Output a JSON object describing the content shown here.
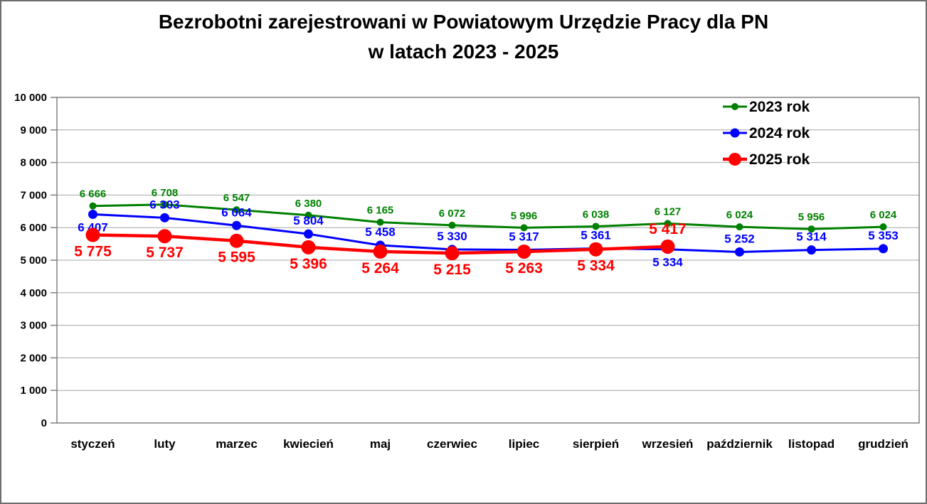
{
  "page": {
    "background": "#ffffff",
    "border_color": "#6e6e6e"
  },
  "title": {
    "line1": "Bezrobotni zarejestrowani w Powiatowym Urzędzie Pracy dla PN",
    "line2": "w latach 2023 - 2025"
  },
  "chart_data": {
    "type": "line",
    "title": "Bezrobotni zarejestrowani w Powiatowym Urzędzie Pracy dla PN w latach 2023 - 2025",
    "categories": [
      "styczeń",
      "luty",
      "marzec",
      "kwiecień",
      "maj",
      "czerwiec",
      "lipiec",
      "sierpień",
      "wrzesień",
      "październik",
      "listopad",
      "grudzień"
    ],
    "ylim": [
      0,
      10000
    ],
    "ytick_step": 1000,
    "ytick_labels": [
      "0",
      "1 000",
      "2 000",
      "3 000",
      "4 000",
      "5 000",
      "6 000",
      "7 000",
      "8 000",
      "9 000",
      "10 000"
    ],
    "grid": "horizontal",
    "gridline_color": "#a6a6a6",
    "axis_border_color": "#808080",
    "legend_position": "top-right-inside",
    "series": [
      {
        "name": "2023 rok",
        "color": "#008000",
        "values": [
          6666,
          6708,
          6547,
          6380,
          6165,
          6072,
          5996,
          6038,
          6127,
          6024,
          5956,
          6024
        ],
        "labels": [
          "6 666",
          "6 708",
          "6 547",
          "6 380",
          "6 165",
          "6 072",
          "5 996",
          "6 038",
          "6 127",
          "6 024",
          "5 956",
          "6 024"
        ],
        "label_positions": [
          "above",
          "above",
          "above",
          "above",
          "above",
          "above",
          "above",
          "above",
          "above",
          "above",
          "above",
          "above"
        ]
      },
      {
        "name": "2024 rok",
        "color": "#0000ff",
        "values": [
          6407,
          6303,
          6064,
          5804,
          5458,
          5330,
          5317,
          5361,
          5334,
          5252,
          5314,
          5353
        ],
        "labels": [
          "6 407",
          "6 303",
          "6 064",
          "5 804",
          "5 458",
          "5 330",
          "5 317",
          "5 361",
          "5 334",
          "5 252",
          "5 314",
          "5 353"
        ],
        "label_positions": [
          "below",
          "above",
          "above",
          "above",
          "above",
          "above",
          "above",
          "above",
          "below",
          "above",
          "above",
          "above"
        ]
      },
      {
        "name": "2025 rok",
        "color": "#ff0000",
        "values": [
          5775,
          5737,
          5595,
          5396,
          5264,
          5215,
          5263,
          5334,
          5417
        ],
        "labels": [
          "5 775",
          "5 737",
          "5 595",
          "5 396",
          "5 264",
          "5 215",
          "5 263",
          "5 334",
          "5 417"
        ],
        "label_positions": [
          "below",
          "below",
          "below",
          "below",
          "below",
          "below",
          "below",
          "below",
          "above"
        ]
      }
    ]
  }
}
